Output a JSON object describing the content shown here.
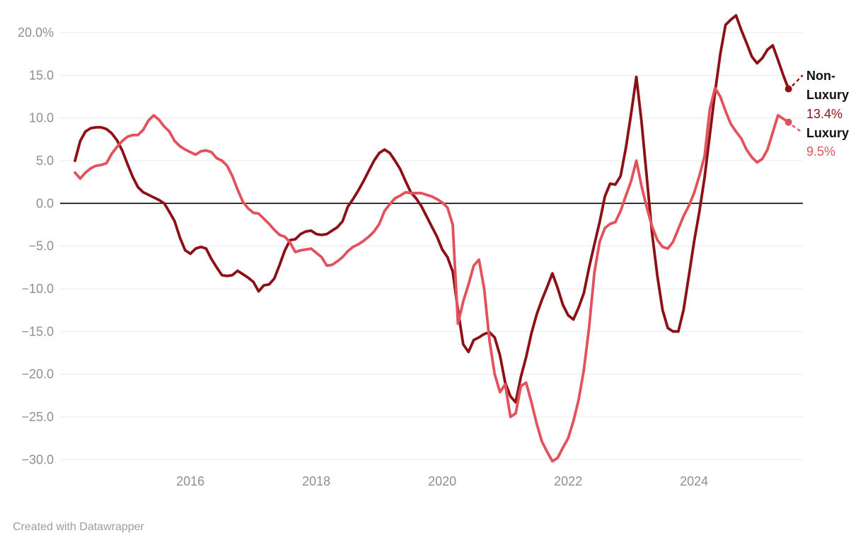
{
  "chart_data": {
    "type": "line",
    "title": "",
    "grid": "horizontal",
    "zero_line": true,
    "x_start": "2014-03",
    "frequency": "monthly",
    "x_axis": {
      "tick_labels": [
        "2016",
        "2018",
        "2020",
        "2022",
        "2024"
      ],
      "tick_month_indices": [
        22,
        46,
        70,
        94,
        118
      ]
    },
    "y_axis": {
      "ticks": [
        20,
        15,
        10,
        5,
        0,
        -5,
        -10,
        -15,
        -20,
        -25,
        -30
      ],
      "labels": [
        "20.0%",
        "15.0",
        "10.0",
        "5.0",
        "0.0",
        "−5.0",
        "−10.0",
        "−15.0",
        "−20.0",
        "−25.0",
        "−30.0"
      ],
      "range": [
        -31.5,
        23.5
      ]
    },
    "series": [
      {
        "name": "Non-Luxury",
        "color": "#8c1116",
        "end_value": 13.4,
        "values": [
          5.0,
          7.3,
          8.4,
          8.8,
          8.9,
          8.9,
          8.7,
          8.2,
          7.4,
          6.2,
          4.6,
          3.1,
          1.9,
          1.3,
          1.0,
          0.7,
          0.4,
          0.0,
          -1.0,
          -2.1,
          -4.0,
          -5.5,
          -5.9,
          -5.3,
          -5.1,
          -5.3,
          -6.5,
          -7.5,
          -8.4,
          -8.5,
          -8.4,
          -7.9,
          -8.3,
          -8.7,
          -9.2,
          -10.3,
          -9.6,
          -9.5,
          -8.8,
          -7.2,
          -5.5,
          -4.3,
          -4.2,
          -3.6,
          -3.3,
          -3.2,
          -3.6,
          -3.7,
          -3.6,
          -3.2,
          -2.8,
          -2.1,
          -0.4,
          0.5,
          1.5,
          2.6,
          3.8,
          5.0,
          5.9,
          6.3,
          5.9,
          5.0,
          4.0,
          2.6,
          1.3,
          0.6,
          -0.3,
          -1.5,
          -2.7,
          -3.9,
          -5.4,
          -6.3,
          -8.0,
          -12.5,
          -16.5,
          -17.4,
          -16.0,
          -15.7,
          -15.3,
          -15.1,
          -15.7,
          -17.8,
          -21.0,
          -22.6,
          -23.3,
          -20.3,
          -18.0,
          -15.2,
          -13.0,
          -11.3,
          -9.8,
          -8.2,
          -9.9,
          -11.9,
          -13.1,
          -13.6,
          -12.2,
          -10.5,
          -7.5,
          -4.8,
          -2.2,
          0.8,
          2.3,
          2.2,
          3.2,
          6.5,
          10.5,
          14.8,
          9.5,
          3.0,
          -3.5,
          -8.5,
          -12.5,
          -14.6,
          -15.0,
          -15.0,
          -12.5,
          -8.5,
          -4.5,
          -1.0,
          3.0,
          8.0,
          13.0,
          17.5,
          20.9,
          21.5,
          22.0,
          20.3,
          18.8,
          17.2,
          16.4,
          17.0,
          18.0,
          18.5,
          16.8,
          15.0,
          13.4
        ]
      },
      {
        "name": "Luxury",
        "color": "#e2525c",
        "end_value": 9.5,
        "values": [
          3.6,
          2.9,
          3.6,
          4.1,
          4.4,
          4.5,
          4.7,
          5.8,
          6.6,
          7.3,
          7.8,
          8.0,
          8.0,
          8.6,
          9.7,
          10.3,
          9.8,
          9.0,
          8.4,
          7.3,
          6.7,
          6.3,
          6.0,
          5.7,
          6.1,
          6.2,
          6.0,
          5.3,
          5.0,
          4.4,
          3.2,
          1.6,
          0.2,
          -0.6,
          -1.1,
          -1.2,
          -1.8,
          -2.4,
          -3.1,
          -3.7,
          -3.9,
          -4.6,
          -5.7,
          -5.5,
          -5.4,
          -5.3,
          -5.8,
          -6.3,
          -7.3,
          -7.2,
          -6.8,
          -6.3,
          -5.6,
          -5.1,
          -4.8,
          -4.4,
          -3.9,
          -3.3,
          -2.4,
          -0.9,
          -0.1,
          0.6,
          0.9,
          1.3,
          1.2,
          1.2,
          1.2,
          1.0,
          0.8,
          0.5,
          0.1,
          -0.5,
          -2.5,
          -14.1,
          -11.5,
          -9.5,
          -7.3,
          -6.6,
          -10.0,
          -16.0,
          -20.0,
          -22.1,
          -21.2,
          -25.0,
          -24.6,
          -21.4,
          -21.0,
          -23.3,
          -25.8,
          -27.9,
          -29.1,
          -30.2,
          -29.8,
          -28.6,
          -27.5,
          -25.5,
          -23.0,
          -19.5,
          -14.5,
          -8.1,
          -4.5,
          -2.9,
          -2.4,
          -2.2,
          -0.9,
          0.9,
          2.6,
          5.0,
          2.0,
          -0.5,
          -2.7,
          -4.3,
          -5.1,
          -5.3,
          -4.5,
          -3.0,
          -1.5,
          -0.3,
          1.2,
          3.2,
          5.5,
          11.0,
          13.5,
          12.5,
          10.8,
          9.3,
          8.4,
          7.6,
          6.3,
          5.4,
          4.8,
          5.2,
          6.3,
          8.3,
          10.3,
          9.9,
          9.5
        ]
      }
    ],
    "annotations": {
      "non_luxury": {
        "line1": "Non-",
        "line2": "Luxury",
        "value": "13.4%"
      },
      "luxury": {
        "label": "Luxury",
        "value": "9.5%"
      }
    }
  },
  "footer": {
    "credit": "Created with Datawrapper"
  }
}
